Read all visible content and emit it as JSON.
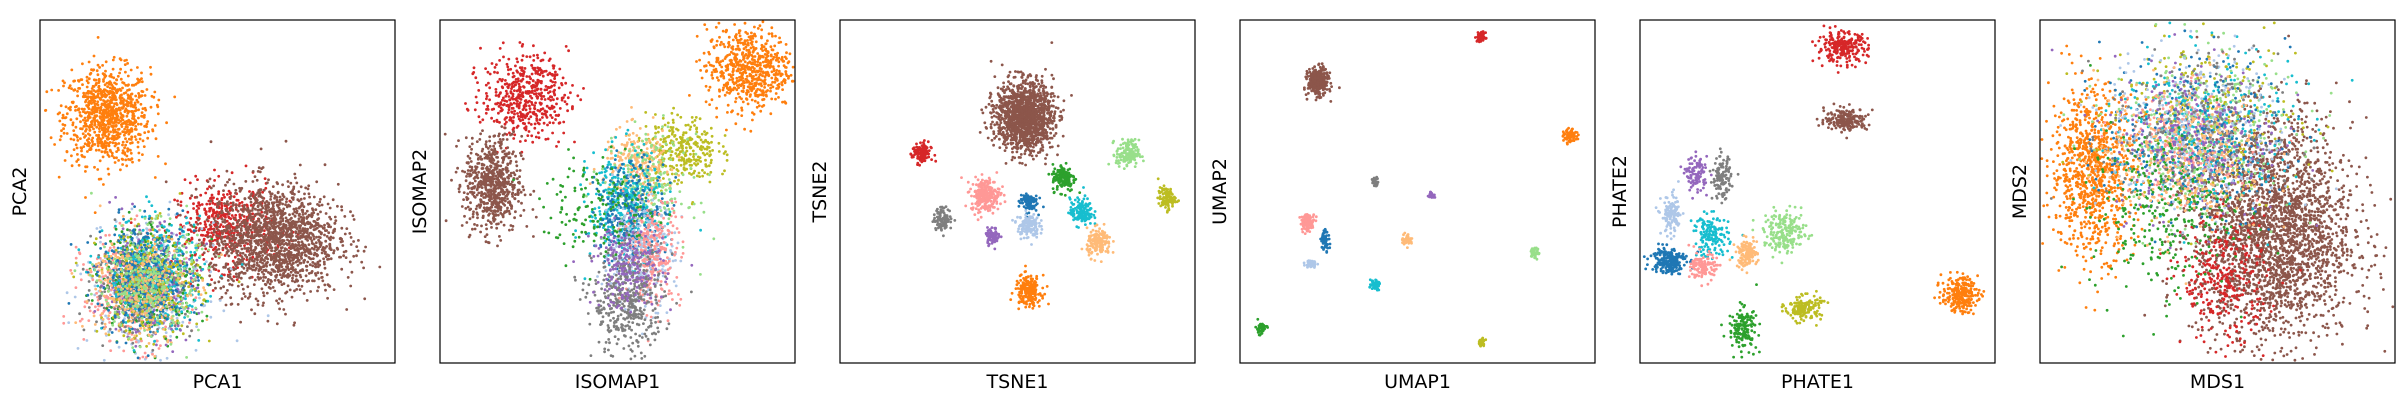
{
  "chart_data": [
    {
      "type": "scatter",
      "xlabel": "PCA1",
      "ylabel": "PCA2",
      "xlim": [
        0,
        100
      ],
      "ylim": [
        0,
        100
      ],
      "xticks": false,
      "yticks": false,
      "clusters": [
        {
          "color": "#ff7f0e",
          "center": [
            19,
            72
          ],
          "spread": [
            6,
            7
          ],
          "n": 900
        },
        {
          "color": "#d62728",
          "center": [
            52,
            40
          ],
          "spread": [
            7,
            6
          ],
          "n": 450
        },
        {
          "color": "#8c564b",
          "center": [
            66,
            36
          ],
          "spread": [
            9,
            8
          ],
          "n": 1600
        },
        {
          "color": "#aec7e8",
          "center": [
            30,
            22
          ],
          "spread": [
            8,
            9
          ],
          "n": 350
        },
        {
          "color": "#ff9896",
          "center": [
            26,
            21
          ],
          "spread": [
            7,
            8
          ],
          "n": 350
        },
        {
          "color": "#2ca02c",
          "center": [
            31,
            25
          ],
          "spread": [
            7,
            8
          ],
          "n": 300
        },
        {
          "color": "#9467bd",
          "center": [
            30,
            24
          ],
          "spread": [
            7,
            8
          ],
          "n": 250
        },
        {
          "color": "#7f7f7f",
          "center": [
            29,
            22
          ],
          "spread": [
            7,
            7
          ],
          "n": 300
        },
        {
          "color": "#17becf",
          "center": [
            32,
            26
          ],
          "spread": [
            7,
            8
          ],
          "n": 300
        },
        {
          "color": "#bcbd22",
          "center": [
            31,
            23
          ],
          "spread": [
            7,
            8
          ],
          "n": 300
        },
        {
          "color": "#1f77b4",
          "center": [
            30,
            25
          ],
          "spread": [
            7,
            8
          ],
          "n": 300
        },
        {
          "color": "#ffbb78",
          "center": [
            28,
            22
          ],
          "spread": [
            7,
            8
          ],
          "n": 250
        },
        {
          "color": "#98df8a",
          "center": [
            31,
            24
          ],
          "spread": [
            7,
            8
          ],
          "n": 250
        }
      ]
    },
    {
      "type": "scatter",
      "xlabel": "ISOMAP1",
      "ylabel": "ISOMAP2",
      "xlim": [
        0,
        100
      ],
      "ylim": [
        0,
        100
      ],
      "xticks": false,
      "yticks": false,
      "clusters": [
        {
          "color": "#d62728",
          "center": [
            24,
            78
          ],
          "spread": [
            6,
            6
          ],
          "n": 500
        },
        {
          "color": "#8c564b",
          "center": [
            15,
            52
          ],
          "spread": [
            4,
            7
          ],
          "n": 650
        },
        {
          "color": "#ff7f0e",
          "center": [
            87,
            86
          ],
          "spread": [
            6,
            6
          ],
          "n": 650
        },
        {
          "color": "#bcbd22",
          "center": [
            68,
            62
          ],
          "spread": [
            5,
            5
          ],
          "n": 300
        },
        {
          "color": "#ffbb78",
          "center": [
            56,
            58
          ],
          "spread": [
            5,
            5
          ],
          "n": 250
        },
        {
          "color": "#98df8a",
          "center": [
            58,
            50
          ],
          "spread": [
            6,
            8
          ],
          "n": 250
        },
        {
          "color": "#17becf",
          "center": [
            52,
            46
          ],
          "spread": [
            5,
            8
          ],
          "n": 300
        },
        {
          "color": "#1f77b4",
          "center": [
            54,
            43
          ],
          "spread": [
            5,
            8
          ],
          "n": 300
        },
        {
          "color": "#aec7e8",
          "center": [
            56,
            32
          ],
          "spread": [
            5,
            8
          ],
          "n": 300
        },
        {
          "color": "#ff9896",
          "center": [
            60,
            33
          ],
          "spread": [
            4,
            8
          ],
          "n": 250
        },
        {
          "color": "#7f7f7f",
          "center": [
            53,
            18
          ],
          "spread": [
            5,
            8
          ],
          "n": 450
        },
        {
          "color": "#9467bd",
          "center": [
            53,
            28
          ],
          "spread": [
            5,
            6
          ],
          "n": 200
        },
        {
          "color": "#2ca02c",
          "center": [
            45,
            45
          ],
          "spread": [
            8,
            7
          ],
          "n": 150
        }
      ]
    },
    {
      "type": "scatter",
      "xlabel": "TSNE1",
      "ylabel": "TSNE2",
      "xlim": [
        0,
        100
      ],
      "ylim": [
        0,
        100
      ],
      "xticks": false,
      "yticks": false,
      "clusters": [
        {
          "color": "#8c564b",
          "center": [
            52,
            72
          ],
          "spread": [
            4,
            5
          ],
          "n": 1400
        },
        {
          "color": "#d62728",
          "center": [
            23,
            61
          ],
          "spread": [
            1.3,
            1.6
          ],
          "n": 120
        },
        {
          "color": "#98df8a",
          "center": [
            81,
            61
          ],
          "spread": [
            1.6,
            2
          ],
          "n": 150
        },
        {
          "color": "#2ca02c",
          "center": [
            63,
            54
          ],
          "spread": [
            1.6,
            2
          ],
          "n": 150
        },
        {
          "color": "#ff9896",
          "center": [
            41,
            49
          ],
          "spread": [
            2,
            2.4
          ],
          "n": 250
        },
        {
          "color": "#bcbd22",
          "center": [
            92,
            48
          ],
          "spread": [
            1.2,
            1.6
          ],
          "n": 100
        },
        {
          "color": "#1f77b4",
          "center": [
            53,
            47
          ],
          "spread": [
            1.3,
            1.5
          ],
          "n": 90
        },
        {
          "color": "#17becf",
          "center": [
            68,
            44
          ],
          "spread": [
            1.6,
            2
          ],
          "n": 150
        },
        {
          "color": "#7f7f7f",
          "center": [
            29,
            42
          ],
          "spread": [
            1.3,
            1.6
          ],
          "n": 110
        },
        {
          "color": "#aec7e8",
          "center": [
            53,
            40
          ],
          "spread": [
            1.5,
            1.8
          ],
          "n": 140
        },
        {
          "color": "#9467bd",
          "center": [
            43,
            37
          ],
          "spread": [
            1,
            1.2
          ],
          "n": 70
        },
        {
          "color": "#ffbb78",
          "center": [
            73,
            35
          ],
          "spread": [
            1.7,
            2
          ],
          "n": 150
        },
        {
          "color": "#ff7f0e",
          "center": [
            53,
            21
          ],
          "spread": [
            1.8,
            2.2
          ],
          "n": 200
        }
      ]
    },
    {
      "type": "scatter",
      "xlabel": "UMAP1",
      "ylabel": "UMAP2",
      "xlim": [
        0,
        100
      ],
      "ylim": [
        0,
        100
      ],
      "xticks": false,
      "yticks": false,
      "clusters": [
        {
          "color": "#d62728",
          "center": [
            68,
            95
          ],
          "spread": [
            0.6,
            0.7
          ],
          "n": 60
        },
        {
          "color": "#8c564b",
          "center": [
            22,
            82
          ],
          "spread": [
            1.4,
            1.9
          ],
          "n": 400
        },
        {
          "color": "#ff7f0e",
          "center": [
            93,
            66
          ],
          "spread": [
            0.9,
            1
          ],
          "n": 80
        },
        {
          "color": "#7f7f7f",
          "center": [
            38,
            53
          ],
          "spread": [
            0.5,
            0.6
          ],
          "n": 40
        },
        {
          "color": "#9467bd",
          "center": [
            54,
            49
          ],
          "spread": [
            0.4,
            0.5
          ],
          "n": 30
        },
        {
          "color": "#ff9896",
          "center": [
            19,
            41
          ],
          "spread": [
            1,
            1.2
          ],
          "n": 100
        },
        {
          "color": "#1f77b4",
          "center": [
            24,
            36
          ],
          "spread": [
            0.6,
            1.5
          ],
          "n": 60
        },
        {
          "color": "#ffbb78",
          "center": [
            47,
            36
          ],
          "spread": [
            0.7,
            0.8
          ],
          "n": 50
        },
        {
          "color": "#98df8a",
          "center": [
            83,
            32
          ],
          "spread": [
            0.6,
            0.8
          ],
          "n": 40
        },
        {
          "color": "#aec7e8",
          "center": [
            20,
            29
          ],
          "spread": [
            0.8,
            0.6
          ],
          "n": 40
        },
        {
          "color": "#17becf",
          "center": [
            38,
            23
          ],
          "spread": [
            0.7,
            0.8
          ],
          "n": 50
        },
        {
          "color": "#2ca02c",
          "center": [
            6,
            10
          ],
          "spread": [
            0.8,
            0.9
          ],
          "n": 50
        },
        {
          "color": "#bcbd22",
          "center": [
            68,
            6
          ],
          "spread": [
            0.5,
            0.6
          ],
          "n": 30
        }
      ]
    },
    {
      "type": "scatter",
      "xlabel": "PHATE1",
      "ylabel": "PHATE2",
      "xlim": [
        0,
        100
      ],
      "ylim": [
        0,
        100
      ],
      "xticks": false,
      "yticks": false,
      "clusters": [
        {
          "color": "#d62728",
          "center": [
            57,
            92
          ],
          "spread": [
            3.5,
            2.2
          ],
          "n": 250
        },
        {
          "color": "#8c564b",
          "center": [
            58,
            71
          ],
          "spread": [
            3,
            1.6
          ],
          "n": 200
        },
        {
          "color": "#9467bd",
          "center": [
            16,
            55
          ],
          "spread": [
            1.5,
            2.5
          ],
          "n": 100
        },
        {
          "color": "#7f7f7f",
          "center": [
            23,
            54
          ],
          "spread": [
            1.3,
            3
          ],
          "n": 120
        },
        {
          "color": "#aec7e8",
          "center": [
            9,
            43
          ],
          "spread": [
            1.5,
            3
          ],
          "n": 120
        },
        {
          "color": "#17becf",
          "center": [
            20,
            37
          ],
          "spread": [
            2.5,
            3
          ],
          "n": 150
        },
        {
          "color": "#98df8a",
          "center": [
            41,
            38
          ],
          "spread": [
            3,
            3
          ],
          "n": 200
        },
        {
          "color": "#ffbb78",
          "center": [
            30,
            32
          ],
          "spread": [
            1.5,
            2
          ],
          "n": 120
        },
        {
          "color": "#1f77b4",
          "center": [
            8,
            30
          ],
          "spread": [
            2.5,
            2
          ],
          "n": 200
        },
        {
          "color": "#ff9896",
          "center": [
            18,
            28
          ],
          "spread": [
            1.8,
            2
          ],
          "n": 120
        },
        {
          "color": "#bcbd22",
          "center": [
            46,
            16
          ],
          "spread": [
            2.5,
            1.8
          ],
          "n": 150
        },
        {
          "color": "#2ca02c",
          "center": [
            29,
            10
          ],
          "spread": [
            2,
            3
          ],
          "n": 150
        },
        {
          "color": "#ff7f0e",
          "center": [
            90,
            20
          ],
          "spread": [
            2.5,
            2.5
          ],
          "n": 250
        }
      ]
    },
    {
      "type": "scatter",
      "xlabel": "MDS1",
      "ylabel": "MDS2",
      "xlim": [
        0,
        100
      ],
      "ylim": [
        0,
        100
      ],
      "xticks": false,
      "yticks": false,
      "clusters": [
        {
          "color": "#8c564b",
          "center": [
            66,
            38
          ],
          "spread": [
            11,
            16
          ],
          "n": 2600
        },
        {
          "color": "#ff7f0e",
          "center": [
            15,
            56
          ],
          "spread": [
            6,
            12
          ],
          "n": 900
        },
        {
          "color": "#d62728",
          "center": [
            52,
            24
          ],
          "spread": [
            6,
            9
          ],
          "n": 300
        },
        {
          "color": "#ff9896",
          "center": [
            42,
            64
          ],
          "spread": [
            8,
            8
          ],
          "n": 350
        },
        {
          "color": "#bcbd22",
          "center": [
            47,
            70
          ],
          "spread": [
            13,
            12
          ],
          "n": 300
        },
        {
          "color": "#17becf",
          "center": [
            45,
            68
          ],
          "spread": [
            13,
            12
          ],
          "n": 300
        },
        {
          "color": "#98df8a",
          "center": [
            46,
            68
          ],
          "spread": [
            13,
            12
          ],
          "n": 300
        },
        {
          "color": "#1f77b4",
          "center": [
            44,
            66
          ],
          "spread": [
            13,
            12
          ],
          "n": 300
        },
        {
          "color": "#aec7e8",
          "center": [
            44,
            67
          ],
          "spread": [
            13,
            12
          ],
          "n": 300
        },
        {
          "color": "#7f7f7f",
          "center": [
            43,
            66
          ],
          "spread": [
            12,
            12
          ],
          "n": 250
        },
        {
          "color": "#9467bd",
          "center": [
            44,
            66
          ],
          "spread": [
            12,
            12
          ],
          "n": 250
        },
        {
          "color": "#2ca02c",
          "center": [
            34,
            44
          ],
          "spread": [
            10,
            12
          ],
          "n": 300
        },
        {
          "color": "#ffbb78",
          "center": [
            40,
            60
          ],
          "spread": [
            12,
            12
          ],
          "n": 250
        }
      ]
    }
  ]
}
